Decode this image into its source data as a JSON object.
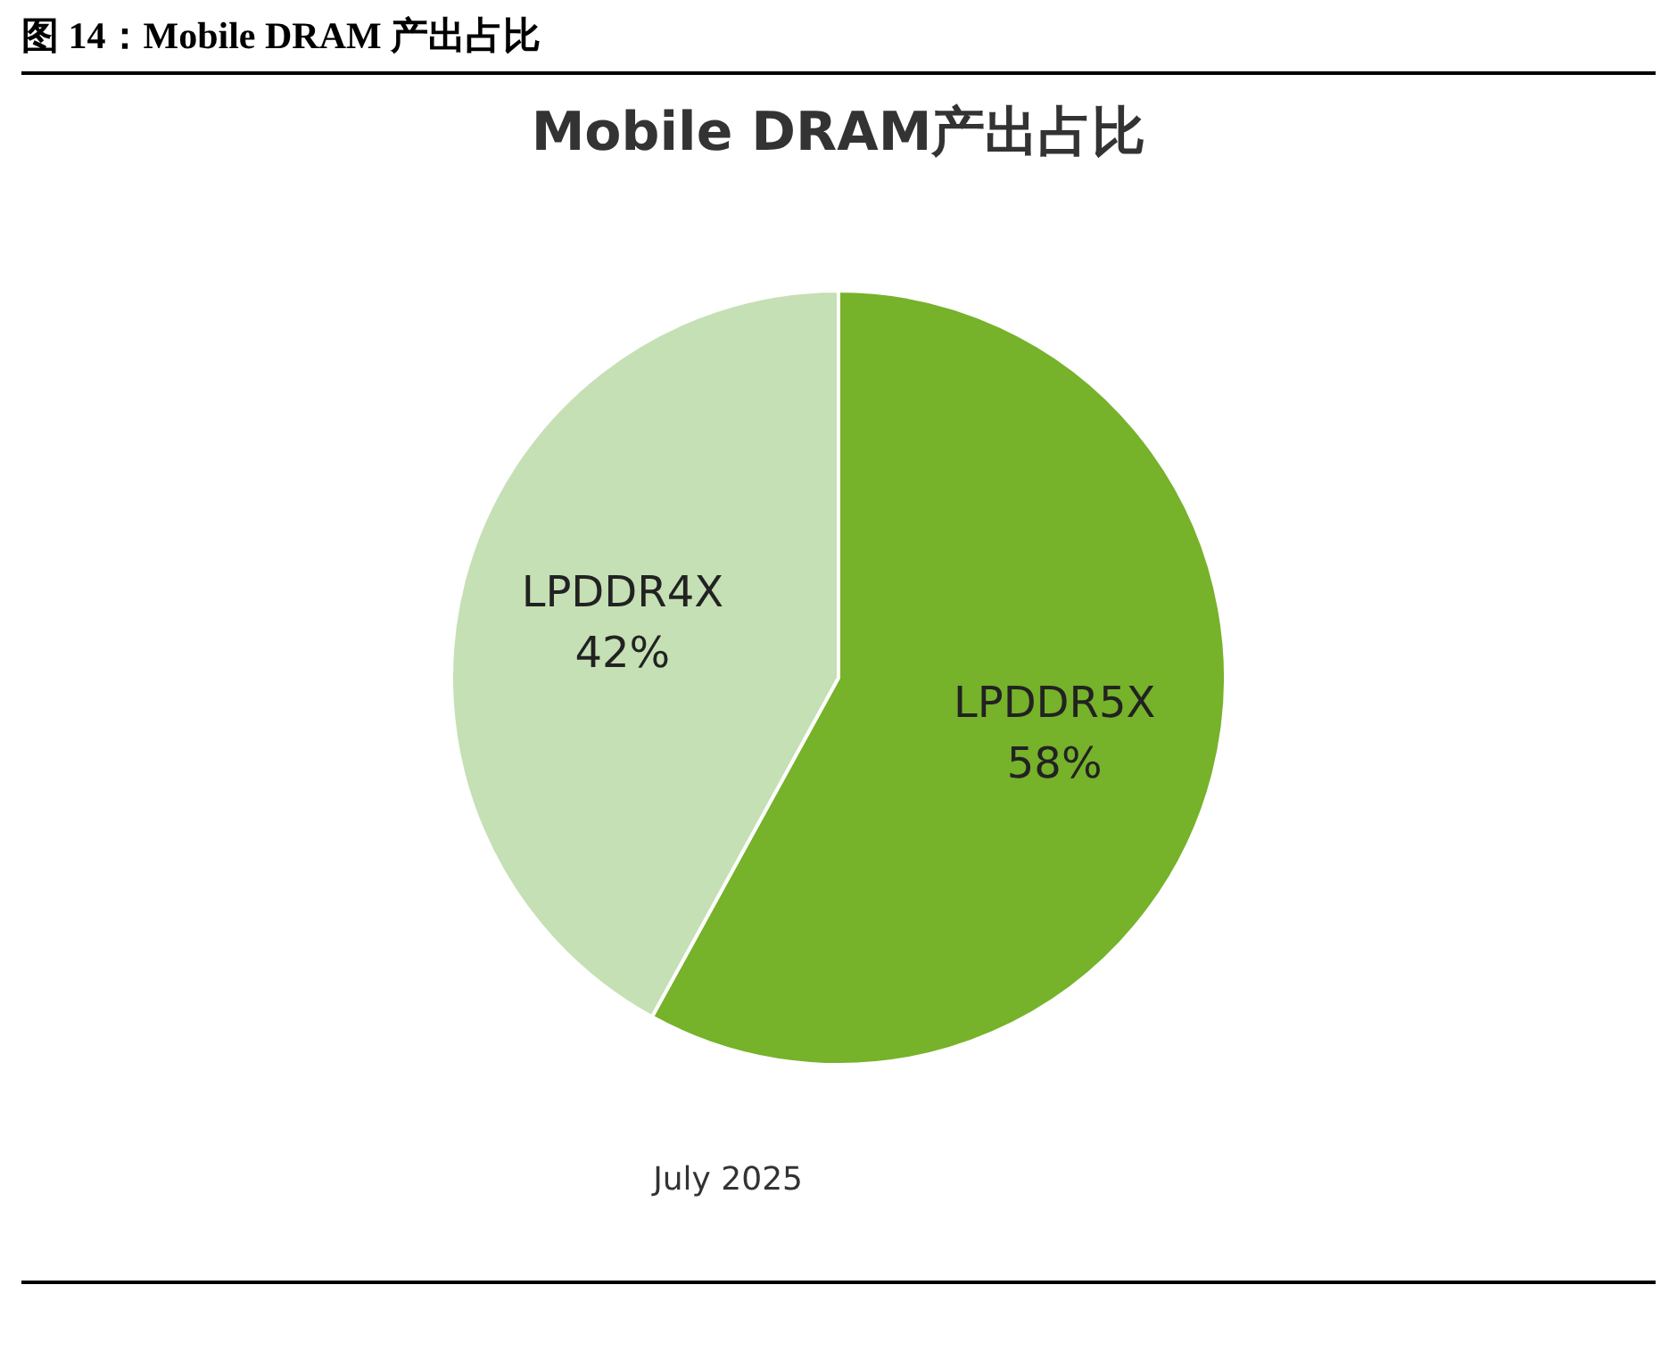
{
  "chart_data": {
    "type": "pie",
    "title": "图 14：Mobile DRAM 产出占比",
    "subtitle": "Mobile DRAM产出占比",
    "categories": [
      "LPDDR5X",
      "LPDDR4X"
    ],
    "values": [
      58,
      42
    ],
    "colors": [
      "#76b22a",
      "#c5e0b4"
    ],
    "value_labels": [
      "58%",
      "42%"
    ],
    "legend": false,
    "annotations": [
      "July 2025"
    ]
  }
}
